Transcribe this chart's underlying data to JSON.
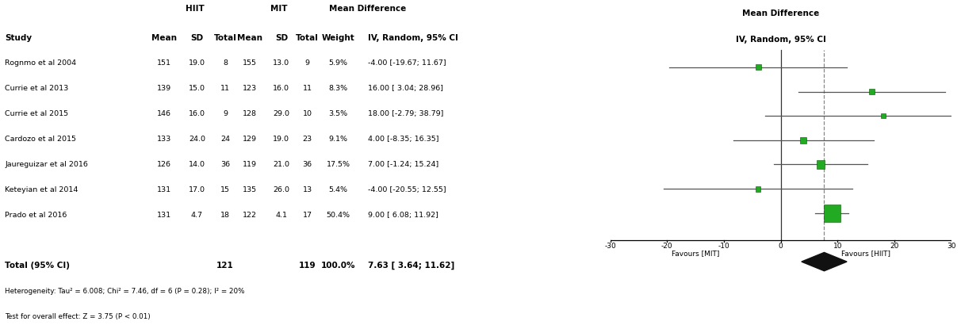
{
  "studies": [
    {
      "name": "Rognmo et al 2004",
      "hiit_mean": 151,
      "hiit_sd": "19.0",
      "hiit_n": 8,
      "mit_mean": 155,
      "mit_sd": "13.0",
      "mit_n": 9,
      "weight": "5.9%",
      "md": -4.0,
      "ci_low": -19.67,
      "ci_high": 11.67,
      "ci_str": "-4.00 [-19.67; 11.67]"
    },
    {
      "name": "Currie et al 2013",
      "hiit_mean": 139,
      "hiit_sd": "15.0",
      "hiit_n": 11,
      "mit_mean": 123,
      "mit_sd": "16.0",
      "mit_n": 11,
      "weight": "8.3%",
      "md": 16.0,
      "ci_low": 3.04,
      "ci_high": 28.96,
      "ci_str": "16.00 [ 3.04; 28.96]"
    },
    {
      "name": "Currie et al 2015",
      "hiit_mean": 146,
      "hiit_sd": "16.0",
      "hiit_n": 9,
      "mit_mean": 128,
      "mit_sd": "29.0",
      "mit_n": 10,
      "weight": "3.5%",
      "md": 18.0,
      "ci_low": -2.79,
      "ci_high": 38.79,
      "ci_str": "18.00 [-2.79; 38.79]"
    },
    {
      "name": "Cardozo et al 2015",
      "hiit_mean": 133,
      "hiit_sd": "24.0",
      "hiit_n": 24,
      "mit_mean": 129,
      "mit_sd": "19.0",
      "mit_n": 23,
      "weight": "9.1%",
      "md": 4.0,
      "ci_low": -8.35,
      "ci_high": 16.35,
      "ci_str": "4.00 [-8.35; 16.35]"
    },
    {
      "name": "Jaureguizar et al 2016",
      "hiit_mean": 126,
      "hiit_sd": "14.0",
      "hiit_n": 36,
      "mit_mean": 119,
      "mit_sd": "21.0",
      "mit_n": 36,
      "weight": "17.5%",
      "md": 7.0,
      "ci_low": -1.24,
      "ci_high": 15.24,
      "ci_str": "7.00 [-1.24; 15.24]"
    },
    {
      "name": "Keteyian et al 2014",
      "hiit_mean": 131,
      "hiit_sd": "17.0",
      "hiit_n": 15,
      "mit_mean": 135,
      "mit_sd": "26.0",
      "mit_n": 13,
      "weight": "5.4%",
      "md": -4.0,
      "ci_low": -20.55,
      "ci_high": 12.55,
      "ci_str": "-4.00 [-20.55; 12.55]"
    },
    {
      "name": "Prado et al 2016",
      "hiit_mean": 131,
      "hiit_sd": "4.7",
      "hiit_n": 18,
      "mit_mean": 122,
      "mit_sd": "4.1",
      "mit_n": 17,
      "weight": "50.4%",
      "md": 9.0,
      "ci_low": 6.08,
      "ci_high": 11.92,
      "ci_str": "9.00 [ 6.08; 11.92]"
    }
  ],
  "total": {
    "hiit_n": 121,
    "mit_n": 119,
    "weight": "100.0%",
    "md": 7.63,
    "ci_low": 3.64,
    "ci_high": 11.62,
    "ci_str": "7.63 [ 3.64; 11.62]"
  },
  "heterogeneity_text": "Heterogeneity: Tau² = 6.008; Chi² = 7.46, df = 6 (P = 0.28); I² = 20%",
  "overall_effect_text": "Test for overall effect: Z = 3.75 (P < 0.01)",
  "plot_xlim": [
    -30,
    30
  ],
  "plot_xticks": [
    -30,
    -20,
    -10,
    0,
    10,
    20,
    30
  ],
  "xlabel_left": "Favours [MIT]",
  "xlabel_right": "Favours [HIIT]",
  "marker_color": "#22aa22",
  "weights_numeric": [
    5.9,
    8.3,
    3.5,
    9.1,
    17.5,
    5.4,
    50.4
  ]
}
